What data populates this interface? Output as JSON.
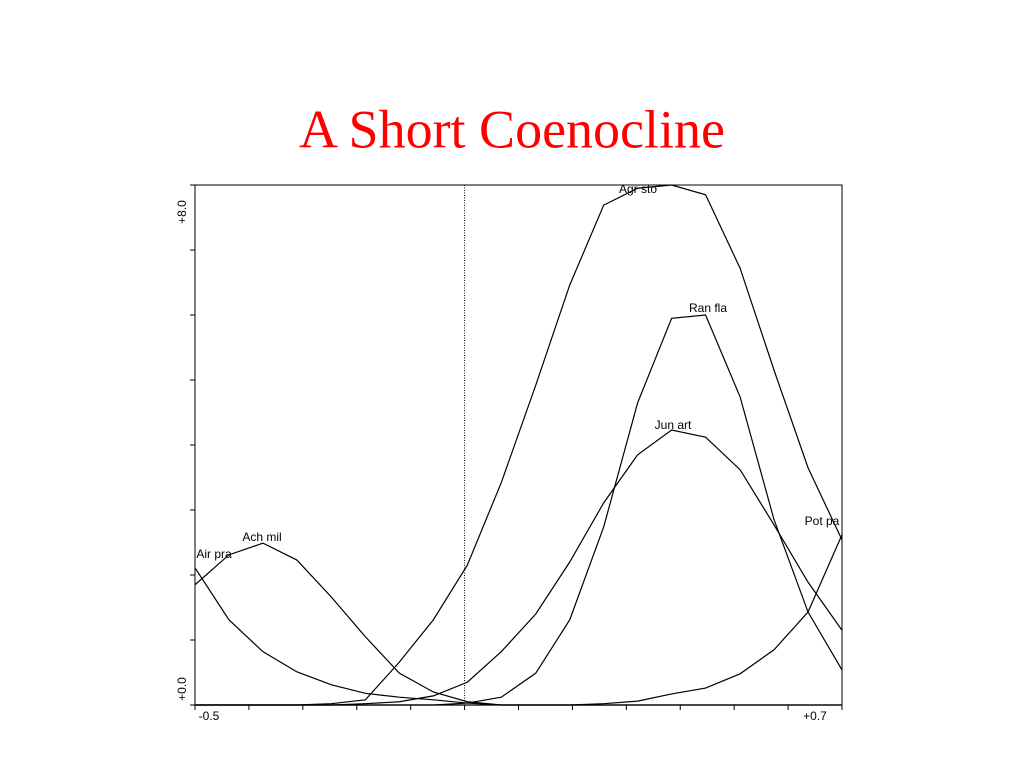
{
  "chart_data": {
    "type": "line",
    "title": "A Short Coenocline",
    "x": [
      -0.5,
      -0.437,
      -0.374,
      -0.311,
      -0.247,
      -0.184,
      -0.121,
      -0.058,
      0.005,
      0.068,
      0.132,
      0.195,
      0.258,
      0.321,
      0.384,
      0.447,
      0.511,
      0.574,
      0.637,
      0.7
    ],
    "series": [
      {
        "name": "Agr sto",
        "color": "#000000",
        "values": [
          0,
          0,
          0,
          0,
          0.02,
          0.08,
          0.66,
          1.31,
          2.15,
          3.42,
          4.92,
          6.46,
          7.69,
          7.95,
          8.0,
          7.85,
          6.72,
          5.15,
          3.65,
          2.54
        ]
      },
      {
        "name": "Ran fla",
        "color": "#000000",
        "values": [
          0,
          0,
          0,
          0,
          0,
          0,
          0,
          0,
          0.03,
          0.12,
          0.49,
          1.31,
          2.74,
          4.65,
          5.95,
          6.0,
          4.74,
          2.85,
          1.43,
          0.54
        ]
      },
      {
        "name": "Jun art",
        "color": "#000000",
        "values": [
          0,
          0,
          0,
          0,
          0,
          0.02,
          0.05,
          0.14,
          0.35,
          0.82,
          1.4,
          2.2,
          3.11,
          3.85,
          4.23,
          4.12,
          3.62,
          2.77,
          1.89,
          1.15
        ]
      },
      {
        "name": "Pot pa",
        "color": "#000000",
        "values": [
          0,
          0,
          0,
          0,
          0,
          0,
          0,
          0,
          0,
          0,
          0,
          0,
          0.02,
          0.06,
          0.17,
          0.26,
          0.48,
          0.85,
          1.43,
          2.62
        ]
      },
      {
        "name": "Ach mil",
        "color": "#000000",
        "values": [
          1.85,
          2.31,
          2.49,
          2.23,
          1.66,
          1.05,
          0.49,
          0.2,
          0.05,
          0,
          0,
          0,
          0,
          0,
          0,
          0,
          0,
          0,
          0,
          0
        ]
      },
      {
        "name": "Air pra",
        "color": "#000000",
        "values": [
          2.11,
          1.31,
          0.82,
          0.51,
          0.31,
          0.18,
          0.12,
          0.08,
          0.03,
          0,
          0,
          0,
          0,
          0,
          0,
          0,
          0,
          0,
          0,
          0
        ]
      }
    ],
    "xlim": [
      -0.5,
      0.7
    ],
    "ylim": [
      0,
      8
    ],
    "xticks": [
      {
        "value": -0.5,
        "label": "-0.5"
      },
      {
        "value": 0.7,
        "label": "+0.7"
      }
    ],
    "xminor_ticks": [
      -0.4,
      -0.3,
      -0.2,
      -0.1,
      0,
      0.1,
      0.2,
      0.3,
      0.4,
      0.5,
      0.6
    ],
    "yticks": [
      {
        "value": 0,
        "label": "+0.0"
      },
      {
        "value": 8,
        "label": "+8.0"
      }
    ],
    "yminor_ticks": [
      1,
      2,
      3,
      4,
      5,
      6,
      7
    ],
    "reference_line_x": 0
  }
}
